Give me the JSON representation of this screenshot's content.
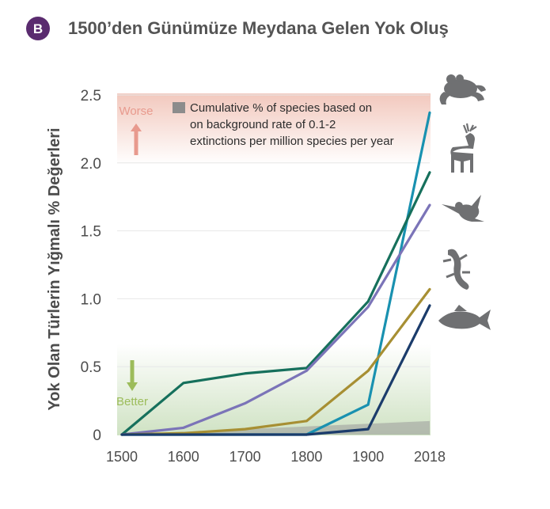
{
  "panel": {
    "badge": "B",
    "title": "1500’den Günümüze Meydana Gelen Yok Oluş"
  },
  "colors": {
    "badge": "#5a2b6f",
    "title": "#545454",
    "axis_text": "#4c4c4c",
    "worse_band": "#f2c8bd",
    "better_band": "#cfe2c3",
    "background_rate": "#9a9a9a",
    "gridline": "#ffffff"
  },
  "legend": {
    "text_lines": [
      "Cumulative % of species based on",
      "on background rate of 0.1-2",
      "extinctions per million species per year"
    ],
    "swatch_color": "#8c8c8c"
  },
  "indicators": {
    "worse": "Worse",
    "better": "Better",
    "worse_color": "#e89a8e",
    "better_color": "#9cbc5a"
  },
  "icons": [
    "frog-icon",
    "deer-icon",
    "hummingbird-icon",
    "lizard-icon",
    "fish-icon"
  ],
  "chart_data": {
    "type": "line",
    "title": "1500’den Günümüze Meydana Gelen Yok Oluş",
    "xlabel": "",
    "ylabel": "Yok Olan Türlerin Yığmalı % Değerleri",
    "x": [
      1500,
      1600,
      1700,
      1800,
      1900,
      2018
    ],
    "x_tick_labels": [
      "1500",
      "1600",
      "1700",
      "1800",
      "1900",
      "2018"
    ],
    "y_ticks": [
      0,
      0.5,
      1.0,
      1.5,
      2.0,
      2.5
    ],
    "y_tick_labels": [
      "0",
      "0.5",
      "1.0",
      "1.5",
      "2.0",
      "2.5"
    ],
    "ylim": [
      0,
      2.5
    ],
    "grid": true,
    "legend_position": "top-left",
    "series": [
      {
        "icon": "frog-icon",
        "color": "#1991b0",
        "values": [
          0,
          0,
          0,
          0,
          0.22,
          2.37
        ]
      },
      {
        "icon": "deer-icon",
        "color": "#16705c",
        "values": [
          0,
          0.38,
          0.45,
          0.49,
          0.98,
          1.93
        ]
      },
      {
        "icon": "hummingbird-icon",
        "color": "#7b74b8",
        "values": [
          0,
          0.05,
          0.23,
          0.47,
          0.94,
          1.69
        ]
      },
      {
        "icon": "lizard-icon",
        "color": "#a78f33",
        "values": [
          0,
          0.01,
          0.04,
          0.1,
          0.47,
          1.07
        ]
      },
      {
        "icon": "fish-icon",
        "color": "#1b3c6b",
        "values": [
          0,
          0,
          0,
          0,
          0.04,
          0.95
        ]
      }
    ],
    "background_rate": {
      "x": [
        1500,
        2018
      ],
      "upper": [
        0.0,
        0.1
      ]
    }
  }
}
